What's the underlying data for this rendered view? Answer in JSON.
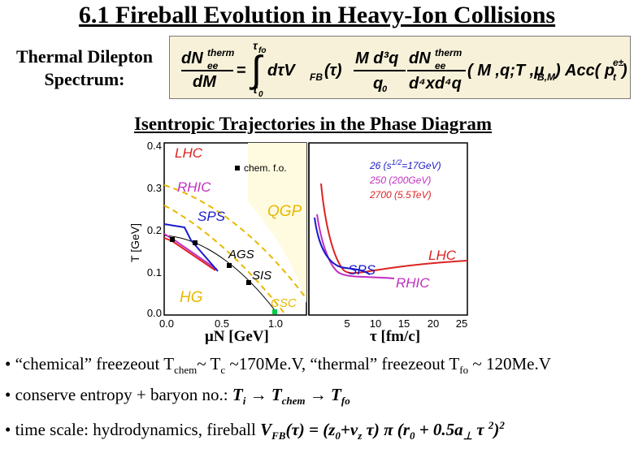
{
  "title": "6.1 Fireball Evolution in Heavy-Ion Collisions",
  "equation_label": {
    "line1": "Thermal Dilepton",
    "line2": "Spectrum:"
  },
  "equation": {
    "lhs_num": "dN",
    "lhs_sup": "therm",
    "lhs_sub": "ee",
    "lhs_den": "dM",
    "eq": "=",
    "int_top": "τ",
    "int_top_sub": "fo",
    "int_bot": "τ",
    "int_bot_sub": "0",
    "integrand": "dτV",
    "integrand_sub": "FB",
    "integrand_arg": "(τ)",
    "frac1_num": "M d³q",
    "frac1_den": "q",
    "frac1_den_sub": "0",
    "frac2_num": "dN",
    "frac2_sup": "therm",
    "frac2_sub": "ee",
    "frac2_den": "d⁴xd⁴q",
    "args": "( M ,q;T ,μ",
    "args_sub": "B,M",
    "args_close": ")",
    "acc": "Acc( p",
    "acc_sub": "t",
    "acc_sup": "e±",
    "acc_close": ")"
  },
  "subtitle": "Isentropic Trajectories in the Phase Diagram",
  "left_panel": {
    "y_axis_label": "T [GeV]",
    "x_axis_label": "μN [GeV]",
    "y_ticks": [
      "0.0",
      "0.1",
      "0.2",
      "0.3",
      "0.4"
    ],
    "x_ticks": [
      "0.0",
      "0.5",
      "1.0"
    ],
    "legend": "chem. f.o.",
    "labels": {
      "lhc": "LHC",
      "rhic": "RHIC",
      "sps": "SPS",
      "ags": "AGS",
      "sis": "SIS",
      "qgp": "QGP",
      "hg": "HG",
      "csc": "CSC"
    }
  },
  "right_panel": {
    "x_axis_label": "τ [fm/c]",
    "x_ticks": [
      "5",
      "10",
      "15",
      "20",
      "25"
    ],
    "legend": [
      {
        "text": "26  (s",
        "sup": "1/2",
        "rest": "=17GeV)",
        "color": "#1a1acc"
      },
      {
        "text": "250  (200GeV)",
        "color": "#c030c0"
      },
      {
        "text": "2700  (5.5TeV)",
        "color": "#dd2222"
      }
    ],
    "labels": {
      "lhc": "LHC",
      "sps": "SPS",
      "rhic": "RHIC"
    }
  },
  "colors": {
    "lhc": "#dd2222",
    "rhic": "#c030c0",
    "sps": "#1a1acc",
    "qgp": "#ffd000",
    "dashed": "#e8b800",
    "csc_marker": "#00cc44",
    "equation_bg": "#f6f1d8"
  },
  "bullets": {
    "b1_text": "• “chemical” freezeout T",
    "b1_sub": "chem",
    "b1_mid": "~ T",
    "b1_sub2": "c",
    "b1_rest": " ~170Me.V, “thermal” freezeout T",
    "b1_sub3": "fo",
    "b1_end": " ~ 120Me.V",
    "b2_text": "• conserve entropy + baryon no.:  ",
    "b2_math": "T",
    "b2_sub": "i",
    "b2_arrow1": " → T",
    "b2_sub2": "chem",
    "b2_arrow2": " → T",
    "b2_sub3": "fo",
    "b3_text": "• time scale: hydrodynamics, fireball  ",
    "b3_math": "V",
    "b3_sub": "FB",
    "b3_rest": "(τ) = (z",
    "b3_sub2": "0",
    "b3_rest2": "+v",
    "b3_sub3": "z",
    "b3_rest3": " τ)  π (r",
    "b3_sub4": "0",
    "b3_rest4": " + 0.5a",
    "b3_sub5": "⊥",
    "b3_rest5": " τ ",
    "b3_sup": "2",
    "b3_rest6": ")",
    "b3_sup2": "2"
  }
}
